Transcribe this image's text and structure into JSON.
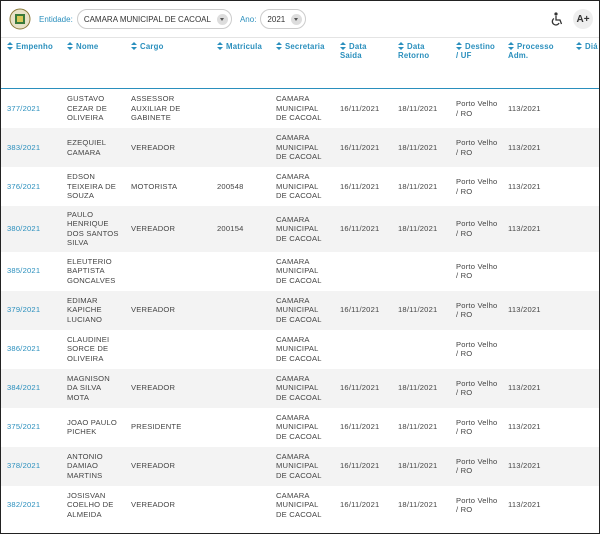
{
  "header": {
    "entity_label": "Entidade:",
    "entity": "CAMARA MUNICIPAL DE CACOAL",
    "year_label": "Ano:",
    "year": "2021",
    "font_button": "A+"
  },
  "table": {
    "columns": [
      "Empenho",
      "Nome",
      "Cargo",
      "Matricula",
      "Secretaria",
      "Data Saida",
      "Data Retorno",
      "Destino / UF",
      "Processo Adm.",
      "Diá"
    ],
    "rows": [
      [
        "377/2021",
        "GUSTAVO CEZAR DE OLIVEIRA",
        "ASSESSOR AUXILIAR DE GABINETE",
        null,
        "CAMARA MUNICIPAL DE CACOAL",
        "16/11/2021",
        "18/11/2021",
        "Porto Velho / RO",
        "113/2021"
      ],
      [
        "383/2021",
        "EZEQUIEL CAMARA",
        "VEREADOR",
        null,
        "CAMARA MUNICIPAL DE CACOAL",
        "16/11/2021",
        "18/11/2021",
        "Porto Velho / RO",
        "113/2021"
      ],
      [
        "376/2021",
        "EDSON TEIXEIRA DE SOUZA",
        "MOTORISTA",
        "200548",
        "CAMARA MUNICIPAL DE CACOAL",
        "16/11/2021",
        "18/11/2021",
        "Porto Velho / RO",
        "113/2021"
      ],
      [
        "380/2021",
        "PAULO HENRIQUE DOS SANTOS SILVA",
        "VEREADOR",
        "200154",
        "CAMARA MUNICIPAL DE CACOAL",
        "16/11/2021",
        "18/11/2021",
        "Porto Velho / RO",
        "113/2021"
      ],
      [
        "385/2021",
        "ELEUTERIO BAPTISTA GONCALVES",
        null,
        null,
        "CAMARA MUNICIPAL DE CACOAL",
        null,
        null,
        "Porto Velho / RO",
        null
      ],
      [
        "379/2021",
        "EDIMAR KAPICHE LUCIANO",
        "VEREADOR",
        null,
        "CAMARA MUNICIPAL DE CACOAL",
        "16/11/2021",
        "18/11/2021",
        "Porto Velho / RO",
        "113/2021"
      ],
      [
        "386/2021",
        "CLAUDINEI SORCE DE OLIVEIRA",
        null,
        null,
        "CAMARA MUNICIPAL DE CACOAL",
        null,
        null,
        "Porto Velho / RO",
        null
      ],
      [
        "384/2021",
        "MAGNISON DA SILVA MOTA",
        "VEREADOR",
        null,
        "CAMARA MUNICIPAL DE CACOAL",
        "16/11/2021",
        "18/11/2021",
        "Porto Velho / RO",
        "113/2021"
      ],
      [
        "375/2021",
        "JOAO PAULO PICHEK",
        "PRESIDENTE",
        null,
        "CAMARA MUNICIPAL DE CACOAL",
        "16/11/2021",
        "18/11/2021",
        "Porto Velho / RO",
        "113/2021"
      ],
      [
        "378/2021",
        "ANTONIO DAMIAO MARTINS",
        "VEREADOR",
        null,
        "CAMARA MUNICIPAL DE CACOAL",
        "16/11/2021",
        "18/11/2021",
        "Porto Velho / RO",
        "113/2021"
      ],
      [
        "382/2021",
        "JOSISVAN COELHO DE ALMEIDA",
        "VEREADOR",
        null,
        "CAMARA MUNICIPAL DE CACOAL",
        "16/11/2021",
        "18/11/2021",
        "Porto Velho / RO",
        "113/2021"
      ]
    ]
  }
}
